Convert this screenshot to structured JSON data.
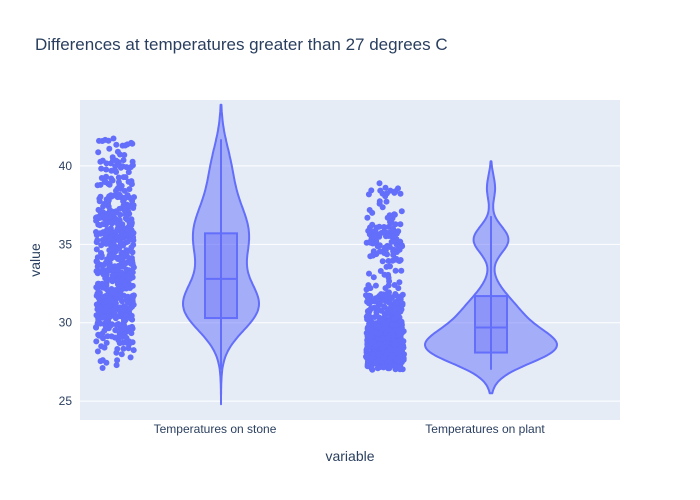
{
  "chart_data": {
    "type": "violin",
    "title": "Differences at temperatures greater than 27 degrees C",
    "xlabel": "variable",
    "ylabel": "value",
    "categories": [
      "Temperatures on stone",
      "Temperatures on plant"
    ],
    "ylim": [
      23.8,
      44.2
    ],
    "yticks": [
      25,
      30,
      35,
      40
    ],
    "grid": true,
    "colors": {
      "marker": "#636efa",
      "fill": "#a3a8f5",
      "line": "#636efa",
      "plot_bg": "#e5ecf6",
      "grid": "#ffffff",
      "text": "#2a3f5f"
    },
    "series": [
      {
        "category": "Temperatures on stone",
        "min": 27.0,
        "q1": 30.3,
        "median": 32.8,
        "q3": 35.7,
        "max": 41.7,
        "kde_min": 24.8,
        "kde_max": 43.9,
        "points_range": [
          27.0,
          41.8
        ],
        "points_count": 600
      },
      {
        "category": "Temperatures on plant",
        "min": 27.0,
        "q1": 28.1,
        "median": 29.7,
        "q3": 31.7,
        "max": 36.8,
        "kde_min": 25.5,
        "kde_max": 40.3,
        "points_range": [
          27.0,
          38.9
        ],
        "points_count": 650
      }
    ]
  }
}
